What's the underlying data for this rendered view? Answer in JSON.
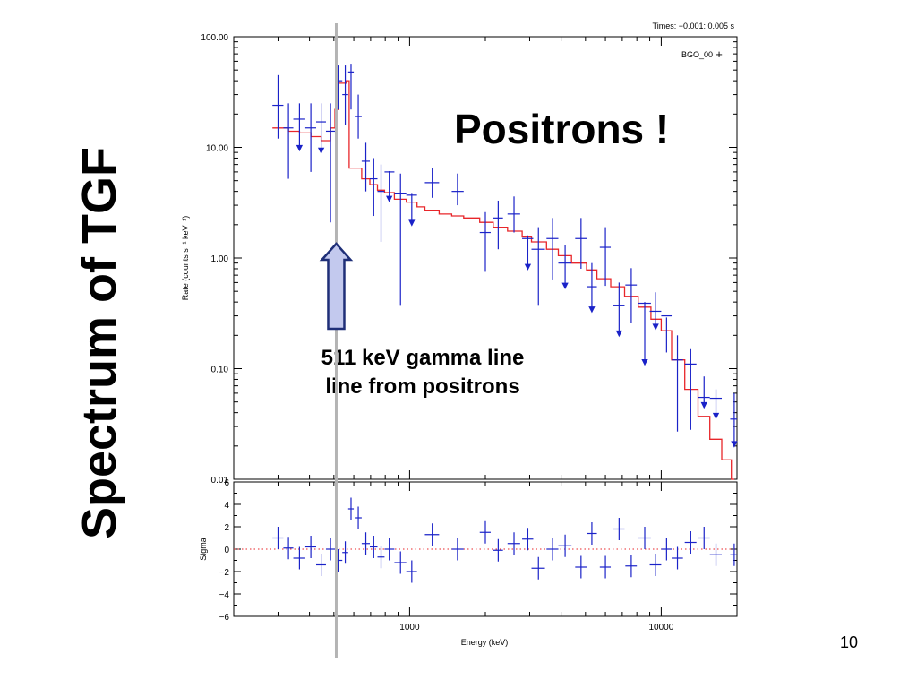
{
  "slide": {
    "title": "Spectrum of TGF",
    "headline": "Positrons !",
    "annotation_line1": "511 keV gamma line",
    "annotation_line2": "line from positrons",
    "page_number": "10"
  },
  "colors": {
    "data": "#1a22c8",
    "model": "#e8262a",
    "marker_line": "#b4b4b4",
    "arrow_fill": "#c3c9ee",
    "arrow_stroke": "#1f2f78"
  },
  "icons": {
    "arrow": "up-arrow-icon"
  },
  "chart_data": [
    {
      "type": "scatter",
      "times_label": "Times: −0.001: 0.005 s",
      "legend": [
        {
          "name": "BGO_00",
          "marker": "+"
        }
      ],
      "xlabel": "Energy (keV)",
      "ylabel": "Rate (counts s⁻¹ keV⁻¹)",
      "xscale": "log",
      "yscale": "log",
      "xlim": [
        200,
        20000
      ],
      "ylim": [
        0.01,
        100
      ],
      "xticks": [
        {
          "value": 1000,
          "label": "1000"
        },
        {
          "value": 10000,
          "label": "10000"
        }
      ],
      "yticks": [
        {
          "value": 100,
          "label": "100.00"
        },
        {
          "value": 10,
          "label": "10.00"
        },
        {
          "value": 1,
          "label": "1.00"
        },
        {
          "value": 0.1,
          "label": "0.10"
        },
        {
          "value": 0.01,
          "label": "0.01"
        }
      ],
      "marked_energy_keV": 511,
      "series": [
        {
          "name": "BGO_00",
          "points": [
            {
              "x": 300,
              "xlo": 285,
              "xhi": 315,
              "y": 24,
              "ylo": 12,
              "yhi": 45
            },
            {
              "x": 330,
              "xlo": 315,
              "xhi": 345,
              "y": 15,
              "ylo": 5.2,
              "yhi": 25
            },
            {
              "x": 365,
              "xlo": 345,
              "xhi": 385,
              "y": 18,
              "ylo": 9.5,
              "yhi": 25,
              "ul": true
            },
            {
              "x": 405,
              "xlo": 385,
              "xhi": 425,
              "y": 15,
              "ylo": 6,
              "yhi": 25
            },
            {
              "x": 445,
              "xlo": 425,
              "xhi": 465,
              "y": 17,
              "ylo": 9,
              "yhi": 25,
              "ul": true
            },
            {
              "x": 485,
              "xlo": 465,
              "xhi": 505,
              "y": 14,
              "ylo": 2.1,
              "yhi": 25
            },
            {
              "x": 520,
              "xlo": 505,
              "xhi": 540,
              "y": 40,
              "ylo": 22,
              "yhi": 55
            },
            {
              "x": 555,
              "xlo": 540,
              "xhi": 570,
              "y": 30,
              "ylo": 16,
              "yhi": 55
            },
            {
              "x": 585,
              "xlo": 570,
              "xhi": 600,
              "y": 48,
              "ylo": 22,
              "yhi": 56
            },
            {
              "x": 625,
              "xlo": 605,
              "xhi": 645,
              "y": 19,
              "ylo": 12,
              "yhi": 30
            },
            {
              "x": 670,
              "xlo": 645,
              "xhi": 695,
              "y": 7.5,
              "ylo": 4,
              "yhi": 11
            },
            {
              "x": 720,
              "xlo": 695,
              "xhi": 745,
              "y": 5.2,
              "ylo": 2.4,
              "yhi": 8
            },
            {
              "x": 770,
              "xlo": 745,
              "xhi": 795,
              "y": 4,
              "ylo": 1.4,
              "yhi": 7
            },
            {
              "x": 830,
              "xlo": 795,
              "xhi": 870,
              "y": 6,
              "ylo": 3.3,
              "yhi": 6.1,
              "ul": true
            },
            {
              "x": 920,
              "xlo": 870,
              "xhi": 970,
              "y": 3.8,
              "ylo": 0.37,
              "yhi": 5.8
            },
            {
              "x": 1020,
              "xlo": 970,
              "xhi": 1070,
              "y": 3.7,
              "ylo": 2,
              "yhi": 3.8,
              "ul": true
            },
            {
              "x": 1230,
              "xlo": 1150,
              "xhi": 1310,
              "y": 4.8,
              "ylo": 3.5,
              "yhi": 6.5
            },
            {
              "x": 1550,
              "xlo": 1470,
              "xhi": 1640,
              "y": 4,
              "ylo": 3,
              "yhi": 5.8
            },
            {
              "x": 2000,
              "xlo": 1900,
              "xhi": 2100,
              "y": 1.7,
              "ylo": 0.75,
              "yhi": 2.6
            },
            {
              "x": 2250,
              "xlo": 2150,
              "xhi": 2350,
              "y": 2.3,
              "ylo": 1.2,
              "yhi": 3.3
            },
            {
              "x": 2600,
              "xlo": 2450,
              "xhi": 2750,
              "y": 2.5,
              "ylo": 1.7,
              "yhi": 3.6
            },
            {
              "x": 2950,
              "xlo": 2800,
              "xhi": 3100,
              "y": 1.5,
              "ylo": 0.8,
              "yhi": 1.6,
              "ul": true
            },
            {
              "x": 3250,
              "xlo": 3050,
              "xhi": 3450,
              "y": 1.2,
              "ylo": 0.37,
              "yhi": 1.9
            },
            {
              "x": 3700,
              "xlo": 3500,
              "xhi": 3900,
              "y": 1.5,
              "ylo": 0.64,
              "yhi": 2.3
            },
            {
              "x": 4150,
              "xlo": 3900,
              "xhi": 4400,
              "y": 0.9,
              "ylo": 0.54,
              "yhi": 1.3,
              "ul": true
            },
            {
              "x": 4800,
              "xlo": 4550,
              "xhi": 5050,
              "y": 1.5,
              "ylo": 0.8,
              "yhi": 2.3
            },
            {
              "x": 5300,
              "xlo": 5050,
              "xhi": 5550,
              "y": 0.55,
              "ylo": 0.33,
              "yhi": 0.9,
              "ul": true
            },
            {
              "x": 6000,
              "xlo": 5700,
              "xhi": 6300,
              "y": 1.25,
              "ylo": 0.56,
              "yhi": 1.9
            },
            {
              "x": 6800,
              "xlo": 6450,
              "xhi": 7150,
              "y": 0.37,
              "ylo": 0.2,
              "yhi": 0.6,
              "ul": true
            },
            {
              "x": 7600,
              "xlo": 7200,
              "xhi": 8000,
              "y": 0.57,
              "ylo": 0.26,
              "yhi": 0.81
            },
            {
              "x": 8600,
              "xlo": 8100,
              "xhi": 9100,
              "y": 0.39,
              "ylo": 0.11,
              "yhi": 0.4,
              "ul": true
            },
            {
              "x": 9500,
              "xlo": 9000,
              "xhi": 10000,
              "y": 0.33,
              "ylo": 0.23,
              "yhi": 0.49,
              "ul": true
            },
            {
              "x": 10500,
              "xlo": 10000,
              "xhi": 11000,
              "y": 0.3,
              "ylo": 0.14,
              "yhi": 0.29
            },
            {
              "x": 11600,
              "xlo": 11000,
              "xhi": 12200,
              "y": 0.12,
              "ylo": 0.027,
              "yhi": 0.2
            },
            {
              "x": 13100,
              "xlo": 12400,
              "xhi": 13800,
              "y": 0.11,
              "ylo": 0.028,
              "yhi": 0.15
            },
            {
              "x": 14800,
              "xlo": 14000,
              "xhi": 15600,
              "y": 0.055,
              "ylo": 0.045,
              "yhi": 0.085,
              "ul": true
            },
            {
              "x": 16500,
              "xlo": 15600,
              "xhi": 17400,
              "y": 0.054,
              "ylo": 0.036,
              "yhi": 0.065,
              "ul": true
            },
            {
              "x": 19500,
              "xlo": 18800,
              "xhi": 20000,
              "y": 0.035,
              "ylo": 0.02,
              "yhi": 0.06,
              "ul": true
            }
          ]
        }
      ],
      "model_step": [
        {
          "x": 285,
          "y": 15
        },
        {
          "x": 330,
          "y": 14
        },
        {
          "x": 365,
          "y": 13.5
        },
        {
          "x": 405,
          "y": 12.5
        },
        {
          "x": 445,
          "y": 11.5
        },
        {
          "x": 485,
          "y": 15
        },
        {
          "x": 505,
          "y": 22
        },
        {
          "x": 520,
          "y": 38
        },
        {
          "x": 560,
          "y": 40
        },
        {
          "x": 575,
          "y": 6.5
        },
        {
          "x": 600,
          "y": 6.5
        },
        {
          "x": 645,
          "y": 5.2
        },
        {
          "x": 695,
          "y": 4.6
        },
        {
          "x": 745,
          "y": 4.1
        },
        {
          "x": 795,
          "y": 3.9
        },
        {
          "x": 870,
          "y": 3.4
        },
        {
          "x": 970,
          "y": 3.2
        },
        {
          "x": 1070,
          "y": 2.9
        },
        {
          "x": 1150,
          "y": 2.7
        },
        {
          "x": 1310,
          "y": 2.5
        },
        {
          "x": 1470,
          "y": 2.4
        },
        {
          "x": 1640,
          "y": 2.3
        },
        {
          "x": 1900,
          "y": 2.1
        },
        {
          "x": 2150,
          "y": 1.9
        },
        {
          "x": 2450,
          "y": 1.75
        },
        {
          "x": 2800,
          "y": 1.55
        },
        {
          "x": 3050,
          "y": 1.4
        },
        {
          "x": 3500,
          "y": 1.2
        },
        {
          "x": 3900,
          "y": 1.05
        },
        {
          "x": 4400,
          "y": 0.9
        },
        {
          "x": 5050,
          "y": 0.78
        },
        {
          "x": 5550,
          "y": 0.65
        },
        {
          "x": 6300,
          "y": 0.55
        },
        {
          "x": 7150,
          "y": 0.45
        },
        {
          "x": 8100,
          "y": 0.36
        },
        {
          "x": 9100,
          "y": 0.28
        },
        {
          "x": 10000,
          "y": 0.22
        },
        {
          "x": 11000,
          "y": 0.12
        },
        {
          "x": 12400,
          "y": 0.065
        },
        {
          "x": 14000,
          "y": 0.037
        },
        {
          "x": 15600,
          "y": 0.023
        },
        {
          "x": 17400,
          "y": 0.015
        },
        {
          "x": 19000,
          "y": 0.01
        }
      ]
    },
    {
      "type": "scatter",
      "xlabel": "Energy (keV)",
      "ylabel": "Sigma",
      "xscale": "log",
      "xlim": [
        200,
        20000
      ],
      "ylim": [
        -6,
        6
      ],
      "yticks": [
        {
          "value": 6,
          "label": "6"
        },
        {
          "value": 4,
          "label": "4"
        },
        {
          "value": 2,
          "label": "2"
        },
        {
          "value": 0,
          "label": "0"
        },
        {
          "value": -2,
          "label": "−2"
        },
        {
          "value": -4,
          "label": "−4"
        },
        {
          "value": -6,
          "label": "−6"
        }
      ],
      "zero_line": 0,
      "series": [
        {
          "name": "BGO_00",
          "points": [
            {
              "x": 300,
              "y": 1.0
            },
            {
              "x": 330,
              "y": 0.1
            },
            {
              "x": 365,
              "y": -0.8
            },
            {
              "x": 405,
              "y": 0.2
            },
            {
              "x": 445,
              "y": -1.4
            },
            {
              "x": 485,
              "y": 0.0
            },
            {
              "x": 520,
              "y": -1.0
            },
            {
              "x": 555,
              "y": -0.3
            },
            {
              "x": 585,
              "y": 3.6
            },
            {
              "x": 625,
              "y": 2.8
            },
            {
              "x": 670,
              "y": 0.5
            },
            {
              "x": 720,
              "y": 0.2
            },
            {
              "x": 770,
              "y": -0.7
            },
            {
              "x": 830,
              "y": 0.0
            },
            {
              "x": 920,
              "y": -1.2
            },
            {
              "x": 1020,
              "y": -2.0
            },
            {
              "x": 1230,
              "y": 1.3
            },
            {
              "x": 1550,
              "y": 0.0
            },
            {
              "x": 2000,
              "y": 1.5
            },
            {
              "x": 2250,
              "y": -0.1
            },
            {
              "x": 2600,
              "y": 0.5
            },
            {
              "x": 2950,
              "y": 0.9
            },
            {
              "x": 3250,
              "y": -1.7
            },
            {
              "x": 3700,
              "y": 0.0
            },
            {
              "x": 4150,
              "y": 0.3
            },
            {
              "x": 4800,
              "y": -1.6
            },
            {
              "x": 5300,
              "y": 1.4
            },
            {
              "x": 6000,
              "y": -1.6
            },
            {
              "x": 6800,
              "y": 1.8
            },
            {
              "x": 7600,
              "y": -1.5
            },
            {
              "x": 8600,
              "y": 1.0
            },
            {
              "x": 9500,
              "y": -1.4
            },
            {
              "x": 10500,
              "y": 0.0
            },
            {
              "x": 11600,
              "y": -0.8
            },
            {
              "x": 13100,
              "y": 0.6
            },
            {
              "x": 14800,
              "y": 1.0
            },
            {
              "x": 16500,
              "y": -0.5
            },
            {
              "x": 19500,
              "y": -0.5
            }
          ]
        }
      ]
    }
  ]
}
